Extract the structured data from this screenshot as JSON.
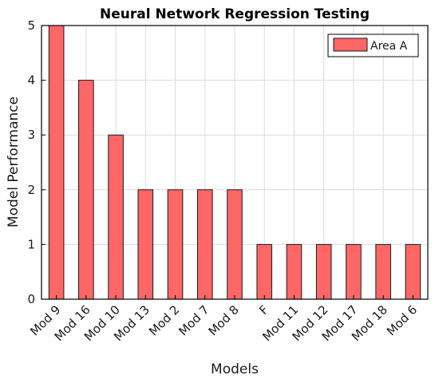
{
  "chart_data": {
    "type": "bar",
    "title": "Neural Network Regression Testing",
    "xlabel": "Models",
    "ylabel": "Model Performance",
    "categories": [
      "Mod 9",
      "Mod 16",
      "Mod 10",
      "Mod 13",
      "Mod 2",
      "Mod 7",
      "Mod 8",
      "F",
      "Mod 11",
      "Mod 12",
      "Mod 17",
      "Mod 18",
      "Mod 6"
    ],
    "series": [
      {
        "name": "Area A",
        "values": [
          5,
          4,
          3,
          2,
          2,
          2,
          2,
          1,
          1,
          1,
          1,
          1,
          1
        ],
        "color": "#ff6666"
      }
    ],
    "ylim": [
      0,
      5
    ],
    "yticks": [
      0,
      1,
      2,
      3,
      4,
      5
    ],
    "grid": true,
    "legend_position": "top-right"
  }
}
